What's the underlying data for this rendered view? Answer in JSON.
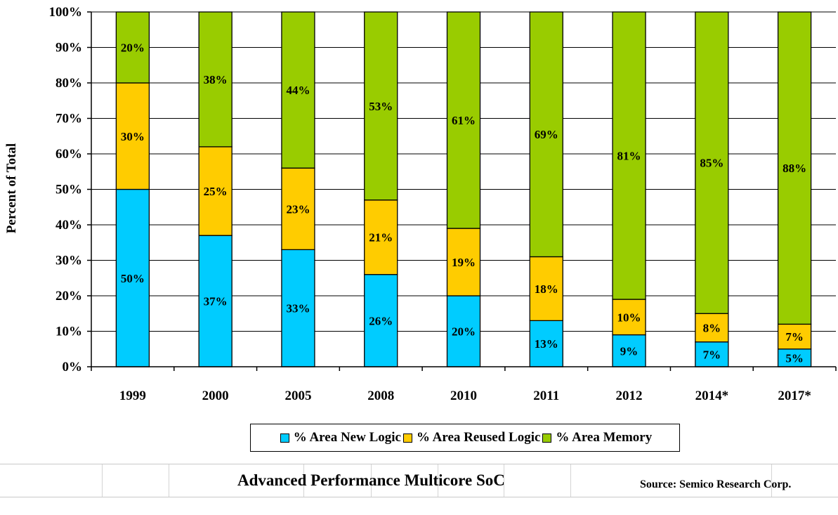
{
  "chart_data": {
    "type": "bar",
    "stacked": true,
    "categories": [
      "1999",
      "2000",
      "2005",
      "2008",
      "2010",
      "2011",
      "2012",
      "2014*",
      "2017*"
    ],
    "series": [
      {
        "name": "% Area New Logic",
        "color": "#00ccff",
        "values": [
          50,
          37,
          33,
          26,
          20,
          13,
          9,
          7,
          5
        ],
        "labels": [
          "50%",
          "37%",
          "33%",
          "26%",
          "20%",
          "13%",
          "9%",
          "7%",
          "5%"
        ]
      },
      {
        "name": "% Area Reused Logic",
        "color": "#ffcc00",
        "values": [
          30,
          25,
          23,
          21,
          19,
          18,
          10,
          8,
          7
        ],
        "labels": [
          "30%",
          "25%",
          "23%",
          "21%",
          "19%",
          "18%",
          "10%",
          "8%",
          "7%"
        ]
      },
      {
        "name": "% Area Memory",
        "color": "#99cc00",
        "values": [
          20,
          38,
          44,
          53,
          61,
          69,
          81,
          85,
          88
        ],
        "labels": [
          "20%",
          "38%",
          "44%",
          "53%",
          "61%",
          "69%",
          "81%",
          "85%",
          "88%"
        ]
      }
    ],
    "ylabel": "Percent of Total",
    "xlabel": "",
    "yticks": [
      "0%",
      "10%",
      "20%",
      "30%",
      "40%",
      "50%",
      "60%",
      "70%",
      "80%",
      "90%",
      "100%"
    ],
    "ylim": [
      0,
      100
    ],
    "grid": true,
    "legend_position": "bottom"
  },
  "footer": {
    "title": "Advanced Performance Multicore SoC",
    "source": "Source: Semico Research Corp."
  }
}
